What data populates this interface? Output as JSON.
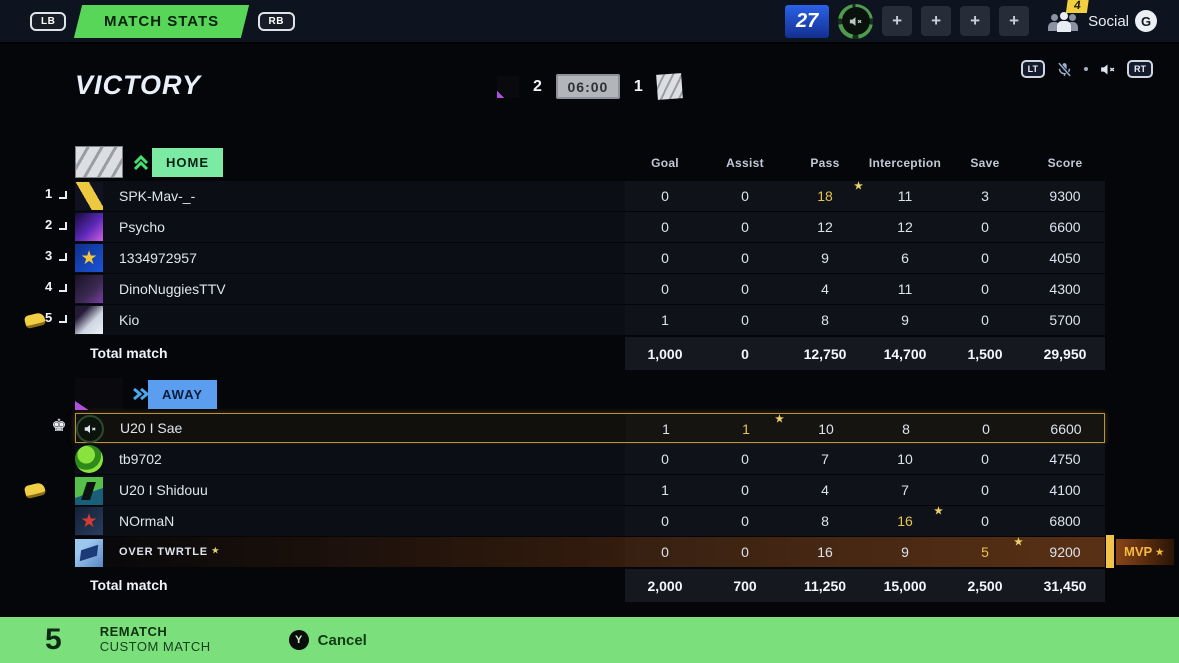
{
  "top_bar": {
    "lb_label": "LB",
    "tab_label": "MATCH STATS",
    "rb_label": "RB",
    "counter": "27",
    "plus": [
      "+",
      "+",
      "+",
      "+"
    ],
    "social_badge": "4",
    "social_label": "Social",
    "platform_glyph": "G"
  },
  "header": {
    "result": "VICTORY",
    "away_score": "2",
    "timer": "06:00",
    "home_score": "1",
    "lt_label": "LT",
    "rt_label": "RT"
  },
  "columns": [
    "Goal",
    "Assist",
    "Pass",
    "Interception",
    "Save",
    "Score"
  ],
  "home": {
    "label": "HOME",
    "players": [
      {
        "rank": "1",
        "name": "SPK-Mav-_-",
        "avatar": "shoe",
        "stats": [
          "0",
          "0",
          "18",
          "11",
          "3",
          "9300"
        ],
        "star_stat": 2,
        "side_icon": null,
        "highlight": false,
        "mvp": false
      },
      {
        "rank": "2",
        "name": "Psycho",
        "avatar": "dragonfly",
        "stats": [
          "0",
          "0",
          "12",
          "12",
          "0",
          "6600"
        ],
        "star_stat": null,
        "side_icon": null,
        "highlight": false,
        "mvp": false
      },
      {
        "rank": "3",
        "name": "1334972957",
        "avatar": "star",
        "stats": [
          "0",
          "0",
          "9",
          "6",
          "0",
          "4050"
        ],
        "star_stat": null,
        "side_icon": null,
        "highlight": false,
        "mvp": false
      },
      {
        "rank": "4",
        "name": "DinoNuggiesTTV",
        "avatar": "dino",
        "stats": [
          "0",
          "0",
          "4",
          "11",
          "0",
          "4300"
        ],
        "star_stat": null,
        "side_icon": null,
        "highlight": false,
        "mvp": false
      },
      {
        "rank": "5",
        "name": "Kio",
        "avatar": "kio",
        "stats": [
          "1",
          "0",
          "8",
          "9",
          "0",
          "5700"
        ],
        "star_stat": null,
        "side_icon": "money",
        "highlight": false,
        "mvp": false
      }
    ],
    "total_label": "Total match",
    "totals": [
      "1,000",
      "0",
      "12,750",
      "14,700",
      "1,500",
      "29,950"
    ]
  },
  "away": {
    "label": "AWAY",
    "players": [
      {
        "rank": null,
        "name": "U20 I Sae",
        "avatar": "muted-speaker",
        "stats": [
          "1",
          "1",
          "10",
          "8",
          "0",
          "6600"
        ],
        "star_stat": 1,
        "side_icon": "leader",
        "highlight": true,
        "mvp": false
      },
      {
        "rank": null,
        "name": "tb9702",
        "avatar": "ball",
        "stats": [
          "0",
          "0",
          "7",
          "10",
          "0",
          "4750"
        ],
        "star_stat": null,
        "side_icon": null,
        "highlight": false,
        "mvp": false
      },
      {
        "rank": null,
        "name": "U20 I Shidouu",
        "avatar": "kicker",
        "stats": [
          "1",
          "0",
          "4",
          "7",
          "0",
          "4100"
        ],
        "star_stat": null,
        "side_icon": "money",
        "highlight": false,
        "mvp": false
      },
      {
        "rank": null,
        "name": "NOrmaN",
        "avatar": "burst",
        "stats": [
          "0",
          "0",
          "8",
          "16",
          "0",
          "6800"
        ],
        "star_stat": 3,
        "side_icon": null,
        "highlight": false,
        "mvp": false
      },
      {
        "rank": null,
        "name": "OVER TWRTLE",
        "name_star": true,
        "avatar": "jet",
        "stats": [
          "0",
          "0",
          "16",
          "9",
          "5",
          "9200"
        ],
        "star_stat": 4,
        "side_icon": null,
        "highlight": false,
        "mvp": true
      }
    ],
    "total_label": "Total match",
    "totals": [
      "2,000",
      "700",
      "11,250",
      "15,000",
      "2,500",
      "31,450"
    ]
  },
  "mvp": {
    "label": "MVP",
    "star": "★"
  },
  "bottom_bar": {
    "rematch_key": "5",
    "rematch_label": "REMATCH",
    "rematch_sub": "CUSTOM MATCH",
    "cancel_key": "Y",
    "cancel_label": "Cancel"
  }
}
